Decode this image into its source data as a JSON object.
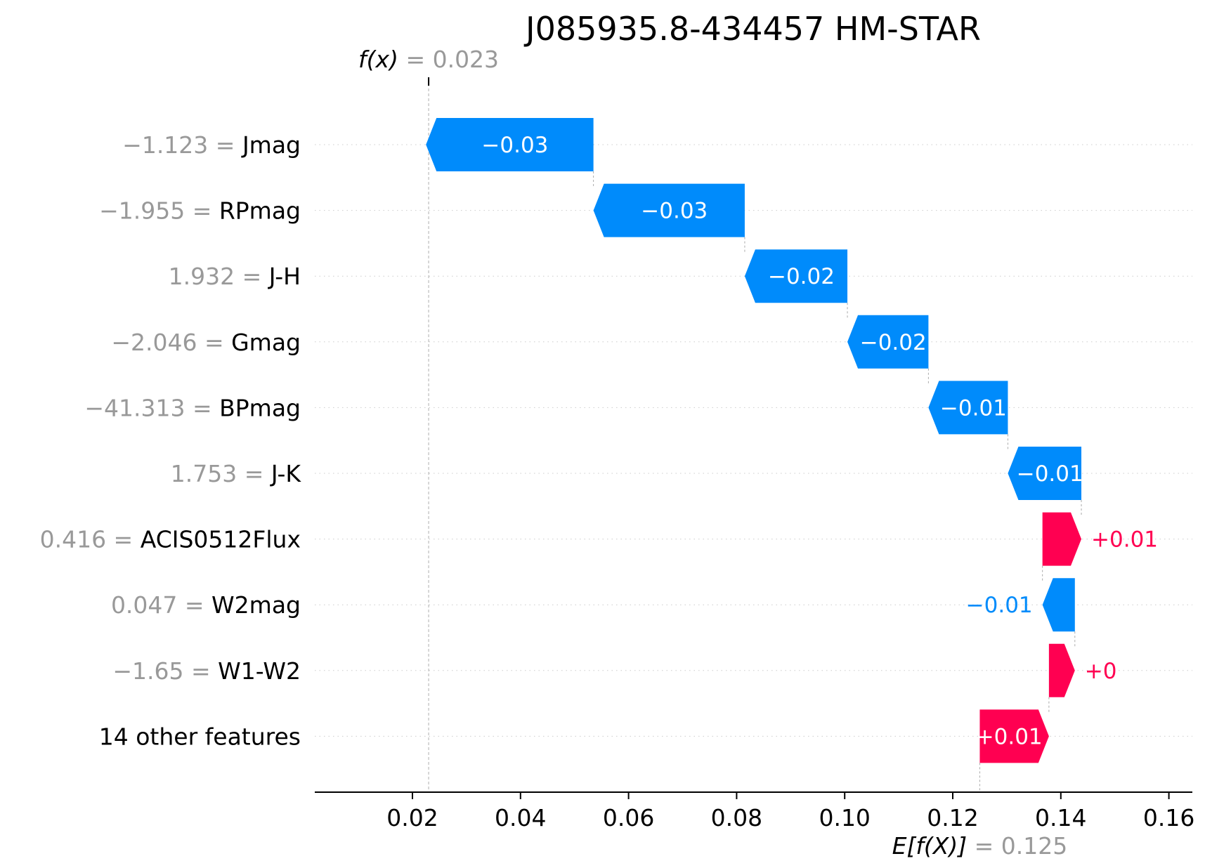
{
  "colors": {
    "positive": "#ff0051",
    "negative": "#008bfb",
    "muted": "#999999",
    "grid": "#cccccc"
  },
  "chart_data": {
    "type": "waterfall",
    "title": "J085935.8-434457 HM-STAR",
    "fx_label": "f(x)",
    "fx_value": "= 0.023",
    "fx": 0.023,
    "ex_label": "E[f(X)]",
    "ex_value": "= 0.125",
    "base_value": 0.125,
    "xlim": [
      0.0,
      0.16
    ],
    "ticks": [
      {
        "value": 0.02,
        "label": "0.02"
      },
      {
        "value": 0.04,
        "label": "0.04"
      },
      {
        "value": 0.06,
        "label": "0.06"
      },
      {
        "value": 0.08,
        "label": "0.08"
      },
      {
        "value": 0.1,
        "label": "0.10"
      },
      {
        "value": 0.12,
        "label": "0.12"
      },
      {
        "value": 0.14,
        "label": "0.14"
      },
      {
        "value": 0.16,
        "label": "0.16"
      }
    ],
    "features": [
      {
        "value_text": "−1.123 =",
        "name": "Jmag",
        "start": 0.0535,
        "end": 0.0225,
        "label": "−0.03"
      },
      {
        "value_text": "−1.955 =",
        "name": "RPmag",
        "start": 0.0815,
        "end": 0.0535,
        "label": "−0.03"
      },
      {
        "value_text": "1.932 =",
        "name": "J-H",
        "start": 0.1005,
        "end": 0.0815,
        "label": "−0.02"
      },
      {
        "value_text": "−2.046 =",
        "name": "Gmag",
        "start": 0.1155,
        "end": 0.1005,
        "label": "−0.02"
      },
      {
        "value_text": "−41.313 =",
        "name": "BPmag",
        "start": 0.1302,
        "end": 0.1155,
        "label": "−0.01"
      },
      {
        "value_text": "1.753 =",
        "name": "J-K",
        "start": 0.1438,
        "end": 0.1302,
        "label": "−0.01"
      },
      {
        "value_text": "0.416 =",
        "name": "ACIS0512Flux",
        "start": 0.1366,
        "end": 0.1438,
        "label": "+0.01"
      },
      {
        "value_text": "0.047 =",
        "name": "W2mag",
        "start": 0.1426,
        "end": 0.1366,
        "label": "−0.01"
      },
      {
        "value_text": "−1.65 =",
        "name": "W1-W2",
        "start": 0.1378,
        "end": 0.1426,
        "label": "+0"
      },
      {
        "value_text": "",
        "name": "14 other features",
        "start": 0.125,
        "end": 0.1378,
        "label": "+0.01"
      }
    ]
  }
}
